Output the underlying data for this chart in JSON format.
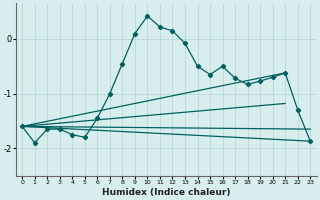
{
  "title": "",
  "xlabel": "Humidex (Indice chaleur)",
  "xlim": [
    -0.5,
    23.5
  ],
  "ylim": [
    -2.5,
    0.65
  ],
  "background_color": "#d8eeee",
  "grid_color": "#b8d8d8",
  "line_color": "#006060",
  "xticks": [
    0,
    1,
    2,
    3,
    4,
    5,
    6,
    7,
    8,
    9,
    10,
    11,
    12,
    13,
    14,
    15,
    16,
    17,
    18,
    19,
    20,
    21,
    22,
    23
  ],
  "yticks": [
    0,
    -1,
    -2
  ],
  "curve_x": [
    0,
    1,
    2,
    3,
    4,
    5,
    6,
    7,
    8,
    9,
    10,
    11,
    12,
    13,
    14,
    15,
    16,
    17,
    18,
    19,
    20,
    21,
    22,
    23
  ],
  "curve_y": [
    -1.6,
    -1.9,
    -1.65,
    -1.65,
    -1.75,
    -1.8,
    -1.45,
    -1.0,
    -0.45,
    0.1,
    0.42,
    0.22,
    0.15,
    -0.08,
    -0.5,
    -0.65,
    -0.5,
    -0.72,
    -0.83,
    -0.77,
    -0.7,
    -0.62,
    -1.3,
    -1.87
  ],
  "line1_x": [
    0,
    23
  ],
  "line1_y": [
    -1.6,
    -1.87
  ],
  "line2_x": [
    0,
    21
  ],
  "line2_y": [
    -1.6,
    -0.62
  ],
  "line3_x": [
    0,
    23
  ],
  "line3_y": [
    -1.6,
    -1.65
  ],
  "line4_x": [
    0,
    21
  ],
  "line4_y": [
    -1.6,
    -1.18
  ]
}
